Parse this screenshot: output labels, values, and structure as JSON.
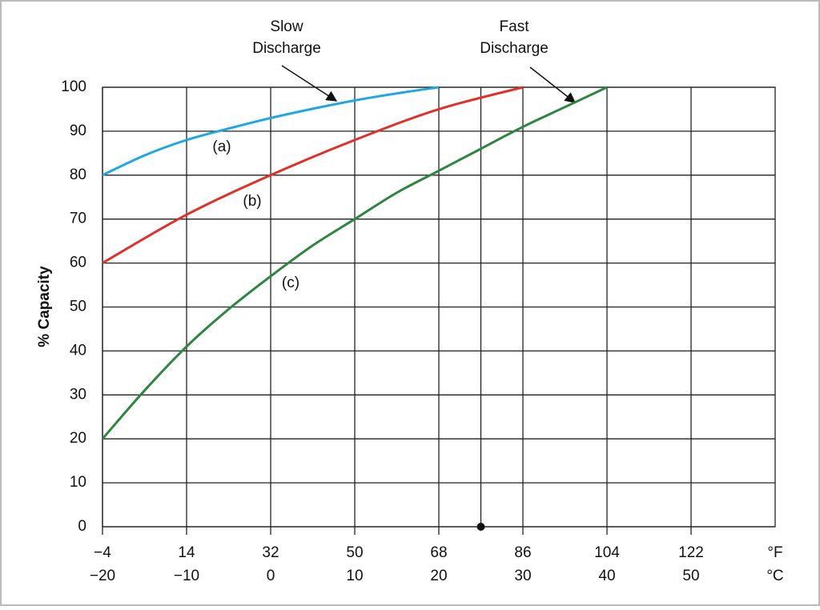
{
  "chart_data": {
    "type": "line",
    "y_label": "% Capacity",
    "x_unit": "°F",
    "x2_unit": "°C",
    "xlim": [
      -4,
      140
    ],
    "xticks": [
      {
        "value": -4,
        "label": "−4"
      },
      14,
      32,
      50,
      68,
      86,
      104,
      122
    ],
    "x2lim": [
      -20,
      60
    ],
    "x2ticks": [
      {
        "value": -20,
        "label": "−20"
      },
      {
        "value": -10,
        "label": "−10"
      },
      0,
      10,
      20,
      30,
      40,
      50
    ],
    "ylim": [
      0,
      100
    ],
    "yticks": [
      0,
      10,
      20,
      30,
      40,
      50,
      60,
      70,
      80,
      90,
      100
    ],
    "grid": true,
    "series": [
      {
        "name": "(a)",
        "color": "#1ea7e1",
        "x": [
          -4,
          5,
          14,
          23,
          32,
          41,
          50,
          59,
          68
        ],
        "values": [
          80,
          84.5,
          88,
          90.6,
          93,
          95.1,
          97,
          98.6,
          100
        ]
      },
      {
        "name": "(b)",
        "color": "#e0302b",
        "x": [
          -4,
          14,
          32,
          50,
          68,
          86
        ],
        "values": [
          60,
          71,
          80,
          88,
          95,
          100
        ]
      },
      {
        "name": "(c)",
        "color": "#2e8540",
        "x": [
          -4,
          5,
          14,
          23,
          32,
          41,
          50,
          59,
          68,
          77,
          86,
          95,
          104
        ],
        "values": [
          20,
          31,
          41,
          49.5,
          57,
          64,
          70,
          76,
          81,
          86,
          91,
          95.5,
          100
        ]
      }
    ],
    "annotations": [
      {
        "lines": [
          "Slow",
          "Discharge"
        ]
      },
      {
        "lines": [
          "Fast",
          "Discharge"
        ]
      }
    ],
    "reference": {
      "x": 77,
      "y": 0
    }
  }
}
